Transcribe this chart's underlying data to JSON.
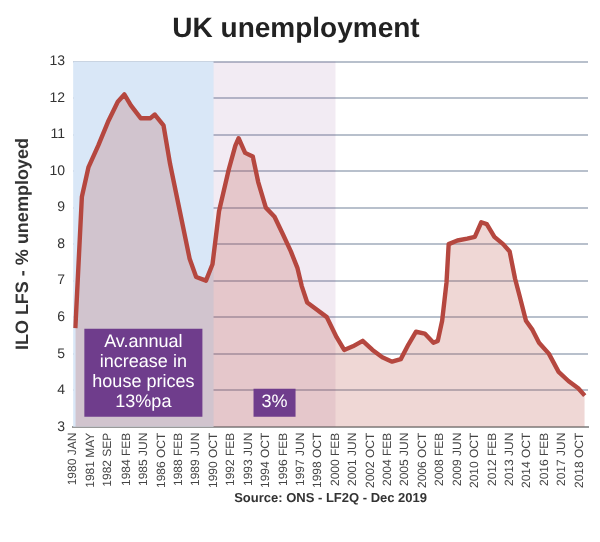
{
  "chart_data": {
    "type": "area",
    "title": "UK unemployment",
    "ylabel": "ILO LFS - % unemployed",
    "x": [
      "1980-03",
      "1980-09",
      "1981-03",
      "1981-12",
      "1982-09",
      "1983-06",
      "1983-12",
      "1984-06",
      "1985-03",
      "1985-12",
      "1986-04",
      "1986-12",
      "1987-06",
      "1988-03",
      "1988-12",
      "1989-06",
      "1990-03",
      "1990-09",
      "1991-03",
      "1991-12",
      "1992-06",
      "1992-09",
      "1993-03",
      "1993-10",
      "1994-03",
      "1994-10",
      "1995-06",
      "1996-02",
      "1996-09",
      "1997-03",
      "1997-07",
      "1997-12",
      "1998-09",
      "1999-06",
      "2000-03",
      "2000-10",
      "2001-06",
      "2002-03",
      "2002-12",
      "2003-09",
      "2004-06",
      "2005-02",
      "2005-09",
      "2006-04",
      "2006-12",
      "2007-08",
      "2007-12",
      "2008-04",
      "2008-08",
      "2008-10",
      "2009-06",
      "2010-03",
      "2010-10",
      "2011-04",
      "2011-09",
      "2012-04",
      "2012-12",
      "2013-06",
      "2013-11",
      "2014-03",
      "2014-09",
      "2015-03",
      "2015-09",
      "2016-06",
      "2017-03",
      "2017-12",
      "2018-09",
      "2019-03"
    ],
    "series": [
      {
        "color": "#b5473f",
        "values": [
          5.7,
          9.3,
          10.1,
          10.7,
          11.35,
          11.9,
          12.1,
          11.8,
          11.45,
          11.45,
          11.55,
          11.25,
          10.2,
          8.9,
          7.6,
          7.1,
          7.0,
          7.45,
          8.9,
          10.05,
          10.7,
          10.9,
          10.5,
          10.4,
          9.7,
          9.0,
          8.75,
          8.25,
          7.8,
          7.35,
          6.85,
          6.4,
          6.2,
          6.0,
          5.45,
          5.1,
          5.2,
          5.35,
          5.1,
          4.9,
          4.78,
          4.85,
          5.25,
          5.6,
          5.55,
          5.3,
          5.35,
          5.9,
          6.95,
          8.0,
          8.1,
          8.15,
          8.2,
          8.6,
          8.55,
          8.2,
          8.0,
          7.8,
          7.05,
          6.6,
          5.9,
          5.65,
          5.3,
          5.0,
          4.5,
          4.25,
          4.05,
          3.85
        ]
      }
    ],
    "xlim": [
      "1980-01",
      "2019-06"
    ],
    "xticks": [
      {
        "value": "1980-01",
        "label": "1980 JAN"
      },
      {
        "value": "1981-05",
        "label": "1981 MAY"
      },
      {
        "value": "1982-09",
        "label": "1982 SEP"
      },
      {
        "value": "1984-02",
        "label": "1984 FEB"
      },
      {
        "value": "1985-06",
        "label": "1985 JUN"
      },
      {
        "value": "1986-10",
        "label": "1986 OCT"
      },
      {
        "value": "1988-02",
        "label": "1988 FEB"
      },
      {
        "value": "1989-06",
        "label": "1989 JUN"
      },
      {
        "value": "1990-10",
        "label": "1990 OCT"
      },
      {
        "value": "1992-02",
        "label": "1992 FEB"
      },
      {
        "value": "1993-06",
        "label": "1993 JUN"
      },
      {
        "value": "1994-10",
        "label": "1994 OCT"
      },
      {
        "value": "1996-02",
        "label": "1996 FEB"
      },
      {
        "value": "1997-06",
        "label": "1997 JUN"
      },
      {
        "value": "1998-10",
        "label": "1998 OCT"
      },
      {
        "value": "2000-02",
        "label": "2000 FEB"
      },
      {
        "value": "2001-06",
        "label": "2001 JUN"
      },
      {
        "value": "2002-10",
        "label": "2002 OCT"
      },
      {
        "value": "2004-02",
        "label": "2004 FEB"
      },
      {
        "value": "2005-06",
        "label": "2005 JUN"
      },
      {
        "value": "2006-10",
        "label": "2006 OCT"
      },
      {
        "value": "2008-02",
        "label": "2008 FEB"
      },
      {
        "value": "2009-06",
        "label": "2009 JUN"
      },
      {
        "value": "2010-10",
        "label": "2010 OCT"
      },
      {
        "value": "2012-02",
        "label": "2012 FEB"
      },
      {
        "value": "2013-06",
        "label": "2013 JUN"
      },
      {
        "value": "2014-10",
        "label": "2014 OCT"
      },
      {
        "value": "2016-02",
        "label": "2016 FEB"
      },
      {
        "value": "2017-06",
        "label": "2017 JUN"
      },
      {
        "value": "2018-10",
        "label": "2018 OCT"
      }
    ],
    "ylim": [
      3,
      13
    ],
    "yticks": [
      3,
      4,
      5,
      6,
      7,
      8,
      9,
      10,
      11,
      12,
      13
    ],
    "grid": "y",
    "bands": [
      {
        "axis": "x",
        "from": "1980-01",
        "to": "1990-10",
        "label": "Av.annual increase in house prices 13%pa",
        "color": "#d9e7f7"
      },
      {
        "axis": "x",
        "from": "1990-10",
        "to": "2000-02",
        "label": "3%",
        "color": "#7b3f8e"
      }
    ],
    "annotations": [
      "Source: ONS - LF2Q - Dec 2019"
    ]
  }
}
